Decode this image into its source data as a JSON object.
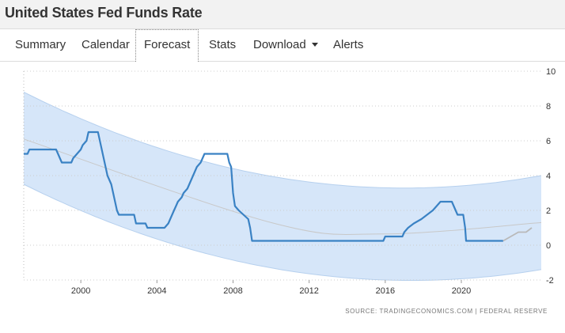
{
  "header": {
    "title": "United States Fed Funds Rate"
  },
  "tabs": [
    {
      "label": "Summary"
    },
    {
      "label": "Calendar"
    },
    {
      "label": "Forecast"
    },
    {
      "label": "Stats"
    },
    {
      "label": "Download"
    },
    {
      "label": "Alerts"
    }
  ],
  "source": {
    "text": "SOURCE: TRADINGECONOMICS.COM | FEDERAL RESERVE"
  },
  "colors": {
    "band": "#cfe2f8",
    "line": "#3a82c4",
    "forecast": "#b9b9b9",
    "trend": "#c8c8c8"
  },
  "chart_data": {
    "type": "line",
    "title": "United States Fed Funds Rate",
    "xlabel": "",
    "ylabel": "",
    "xlim": [
      1997.0,
      2024.2
    ],
    "ylim": [
      -2,
      10
    ],
    "xticks": [
      2000,
      2004,
      2008,
      2012,
      2016,
      2020
    ],
    "yticks": [
      -2,
      0,
      2,
      4,
      6,
      8,
      10
    ],
    "grid": true,
    "series": [
      {
        "name": "Fed Funds Rate",
        "points": [
          [
            1997.0,
            5.25
          ],
          [
            1997.2,
            5.25
          ],
          [
            1997.3,
            5.5
          ],
          [
            1998.7,
            5.5
          ],
          [
            1998.8,
            5.25
          ],
          [
            1998.9,
            5.0
          ],
          [
            1999.0,
            4.75
          ],
          [
            1999.5,
            4.75
          ],
          [
            1999.6,
            5.0
          ],
          [
            1999.8,
            5.25
          ],
          [
            2000.0,
            5.5
          ],
          [
            2000.1,
            5.75
          ],
          [
            2000.3,
            6.0
          ],
          [
            2000.4,
            6.5
          ],
          [
            2000.9,
            6.5
          ],
          [
            2001.0,
            6.0
          ],
          [
            2001.1,
            5.5
          ],
          [
            2001.2,
            5.0
          ],
          [
            2001.3,
            4.5
          ],
          [
            2001.4,
            4.0
          ],
          [
            2001.5,
            3.75
          ],
          [
            2001.6,
            3.5
          ],
          [
            2001.7,
            3.0
          ],
          [
            2001.8,
            2.5
          ],
          [
            2001.9,
            2.0
          ],
          [
            2002.0,
            1.75
          ],
          [
            2002.8,
            1.75
          ],
          [
            2002.9,
            1.25
          ],
          [
            2003.4,
            1.25
          ],
          [
            2003.5,
            1.0
          ],
          [
            2004.4,
            1.0
          ],
          [
            2004.6,
            1.25
          ],
          [
            2004.7,
            1.5
          ],
          [
            2004.8,
            1.75
          ],
          [
            2004.9,
            2.0
          ],
          [
            2005.0,
            2.25
          ],
          [
            2005.1,
            2.5
          ],
          [
            2005.3,
            2.75
          ],
          [
            2005.4,
            3.0
          ],
          [
            2005.6,
            3.25
          ],
          [
            2005.7,
            3.5
          ],
          [
            2005.8,
            3.75
          ],
          [
            2005.9,
            4.0
          ],
          [
            2006.0,
            4.25
          ],
          [
            2006.1,
            4.5
          ],
          [
            2006.3,
            4.75
          ],
          [
            2006.4,
            5.0
          ],
          [
            2006.5,
            5.25
          ],
          [
            2007.7,
            5.25
          ],
          [
            2007.8,
            4.75
          ],
          [
            2007.9,
            4.5
          ],
          [
            2008.0,
            3.0
          ],
          [
            2008.1,
            2.25
          ],
          [
            2008.3,
            2.0
          ],
          [
            2008.8,
            1.5
          ],
          [
            2008.9,
            1.0
          ],
          [
            2009.0,
            0.25
          ],
          [
            2015.9,
            0.25
          ],
          [
            2016.0,
            0.5
          ],
          [
            2016.9,
            0.5
          ],
          [
            2017.0,
            0.75
          ],
          [
            2017.2,
            1.0
          ],
          [
            2017.5,
            1.25
          ],
          [
            2017.9,
            1.5
          ],
          [
            2018.2,
            1.75
          ],
          [
            2018.5,
            2.0
          ],
          [
            2018.7,
            2.25
          ],
          [
            2018.9,
            2.5
          ],
          [
            2019.5,
            2.5
          ],
          [
            2019.6,
            2.25
          ],
          [
            2019.7,
            2.0
          ],
          [
            2019.8,
            1.75
          ],
          [
            2020.1,
            1.75
          ],
          [
            2020.2,
            1.0
          ],
          [
            2020.25,
            0.25
          ],
          [
            2022.2,
            0.25
          ]
        ]
      },
      {
        "name": "Forecast",
        "points": [
          [
            2022.2,
            0.25
          ],
          [
            2022.6,
            0.5
          ],
          [
            2023.0,
            0.75
          ],
          [
            2023.4,
            0.75
          ],
          [
            2023.7,
            1.0
          ]
        ]
      }
    ],
    "trend": {
      "points": [
        [
          1997.0,
          6.1
        ],
        [
          2010.0,
          1.3
        ],
        [
          2016.0,
          0.65
        ],
        [
          2024.2,
          1.3
        ]
      ]
    },
    "band": {
      "upper": [
        [
          1997.0,
          8.8
        ],
        [
          2016.0,
          3.3
        ],
        [
          2024.2,
          4.0
        ]
      ],
      "lower": [
        [
          1997.0,
          3.5
        ],
        [
          2016.0,
          -2.0
        ],
        [
          2024.2,
          -1.4
        ]
      ]
    }
  }
}
